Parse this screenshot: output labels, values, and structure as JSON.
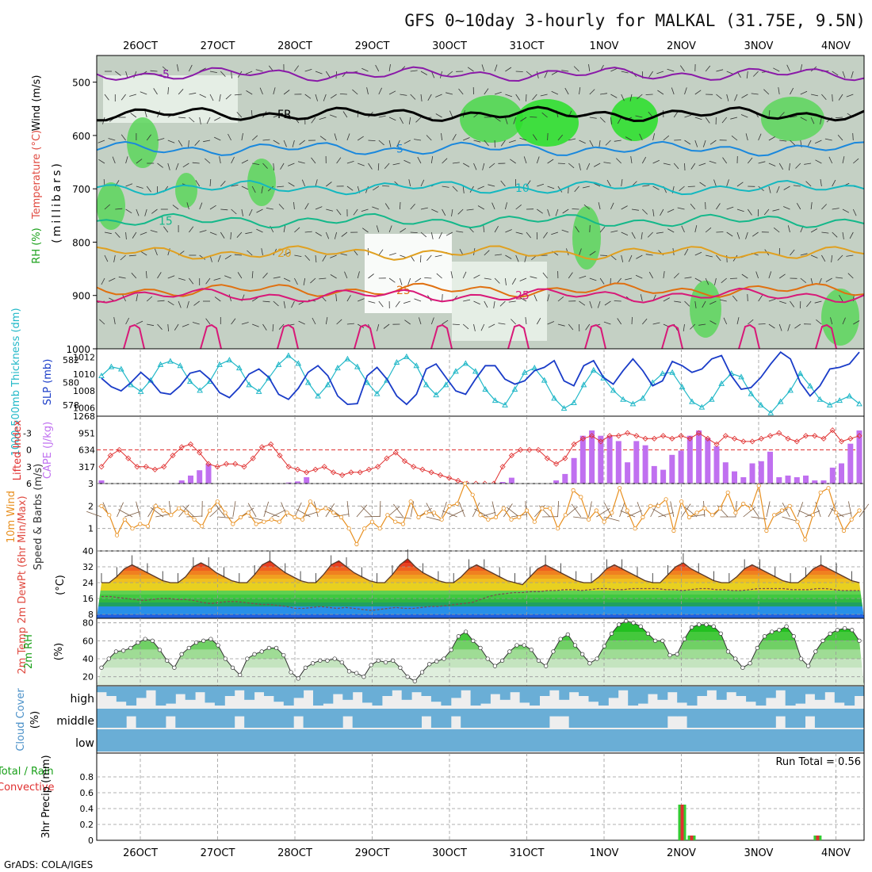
{
  "title": "GFS 0~10day 3-hourly for MALKAL (31.75E, 9.5N)",
  "credit": "GrADS: COLA/IGES",
  "dates": [
    "26OCT",
    "27OCT",
    "28OCT",
    "29OCT",
    "30OCT",
    "31OCT",
    "1NOV",
    "2NOV",
    "3NOV",
    "4NOV"
  ],
  "colors": {
    "sounding_temp": [
      "#8a1aa8",
      "#1a44c8",
      "#1a88dd",
      "#14b8c0",
      "#14b88a",
      "#e0a020",
      "#e07010",
      "#d81878"
    ],
    "thickness": "#22b8c8",
    "slp": "#1a3cc8",
    "lifted_index": "#e03030",
    "cape_bar": "#c070f0",
    "wind_speed": "#e89020",
    "wind_barb": "#7a5a40",
    "rh_green": "#33cc33",
    "cloud": "#6aaed6",
    "precip_total": "#33cc33",
    "precip_conv": "#e03030"
  },
  "chart_data": [
    {
      "id": "sounding",
      "type": "heatmap",
      "ylabel_wind": "Wind (m/s)",
      "ylabel_temp": "Temperature (°C)",
      "ylabel_rh": "RH (%)",
      "ylabel_units": "(millibars)",
      "y_ticks": [
        "500",
        "600",
        "700",
        "800",
        "900",
        "1000"
      ],
      "ylim": [
        1000,
        450
      ],
      "isotherms": [
        {
          "label": "-5",
          "p": 485
        },
        {
          "label": "FR",
          "p": 560
        },
        {
          "label": "5",
          "p": 625
        },
        {
          "label": "10",
          "p": 698
        },
        {
          "label": "15",
          "p": 760
        },
        {
          "label": "20",
          "p": 820
        },
        {
          "label": "25",
          "p": 890
        },
        {
          "label": "25",
          "p": 900
        }
      ],
      "contour_labels": [
        "50",
        "30",
        "10",
        "30",
        "50"
      ]
    },
    {
      "id": "thickness_slp",
      "type": "line",
      "ylabel_left": "1000-500mb Thickness (dm)",
      "ylabel_right": "SLP (mb)",
      "left_ticks": [
        "582",
        "580",
        "578"
      ],
      "right_ticks": [
        "1012",
        "1010",
        "1008",
        "1006"
      ],
      "ylim_left": [
        577,
        583
      ],
      "ylim_right": [
        1005,
        1013
      ],
      "series": [
        {
          "name": "1000-500mb Thickness (dm)",
          "values": [
            580.6,
            581.4,
            581.2,
            579.8,
            579.2,
            580.2,
            581.6,
            581.9,
            581.5,
            580.1,
            579.3,
            580.1,
            581.6,
            582.0,
            581.3,
            579.8,
            579.2,
            580.4,
            581.6,
            582.4,
            581.7,
            580.0,
            578.8,
            579.8,
            581.3,
            582.1,
            581.4,
            580.0,
            579.0,
            580.2,
            581.8,
            582.3,
            581.5,
            579.8,
            578.9,
            579.8,
            581.0,
            581.7,
            581.0,
            579.4,
            578.4,
            578.0,
            579.4,
            580.9,
            581.3,
            580.2,
            578.6,
            577.7,
            578.2,
            579.8,
            581.1,
            580.4,
            579.3,
            578.5,
            578.1,
            578.6,
            580.0,
            580.8,
            580.9,
            579.6,
            578.3,
            577.8,
            578.5,
            579.9,
            580.8,
            580.5,
            579.0,
            578.0,
            577.3,
            578.3,
            579.3,
            580.8,
            579.7,
            578.5,
            578.0,
            578.4,
            578.8,
            578.1
          ]
        },
        {
          "name": "SLP (mb)",
          "values": [
            1009.5,
            1008.5,
            1008.0,
            1009.0,
            1010.2,
            1009.2,
            1007.8,
            1007.6,
            1008.6,
            1010.1,
            1010.4,
            1009.4,
            1007.8,
            1007.2,
            1008.4,
            1010.0,
            1010.6,
            1009.6,
            1007.6,
            1007.0,
            1008.3,
            1010.2,
            1011.0,
            1009.8,
            1007.4,
            1006.4,
            1006.5,
            1009.8,
            1010.8,
            1009.4,
            1007.4,
            1006.4,
            1007.6,
            1010.6,
            1011.2,
            1009.6,
            1008.0,
            1007.6,
            1009.4,
            1011.0,
            1011.0,
            1009.4,
            1008.8,
            1009.2,
            1010.4,
            1010.8,
            1011.6,
            1009.2,
            1008.6,
            1011.0,
            1011.6,
            1009.6,
            1008.8,
            1010.4,
            1011.8,
            1010.4,
            1008.6,
            1009.2,
            1011.5,
            1011.0,
            1010.2,
            1010.6,
            1011.8,
            1012.2,
            1009.8,
            1008.2,
            1008.4,
            1009.6,
            1011.2,
            1012.6,
            1011.8,
            1009.0,
            1007.4,
            1008.6,
            1010.6,
            1010.8,
            1011.2,
            1012.6
          ]
        }
      ]
    },
    {
      "id": "cape_li",
      "type": "bar",
      "ylabel_left": "Lifted Index",
      "ylabel_right": "CAPE (J/kg)",
      "left_ticks": [
        "-3",
        "0",
        "3",
        "6"
      ],
      "right_ticks": [
        "1268",
        "951",
        "634",
        "317"
      ],
      "ylim_li": [
        -6,
        6
      ],
      "ylim_cape": [
        0,
        1268
      ],
      "series": [
        {
          "name": "CAPE (J/kg)",
          "values": [
            60,
            0,
            0,
            0,
            0,
            0,
            0,
            0,
            0,
            60,
            150,
            250,
            370,
            0,
            0,
            0,
            0,
            0,
            0,
            0,
            0,
            20,
            40,
            120,
            0,
            0,
            0,
            0,
            0,
            0,
            0,
            0,
            0,
            0,
            0,
            0,
            0,
            0,
            0,
            0,
            0,
            0,
            0,
            0,
            0,
            30,
            110,
            0,
            0,
            0,
            0,
            60,
            180,
            480,
            900,
            1000,
            900,
            900,
            800,
            400,
            800,
            720,
            330,
            260,
            540,
            620,
            900,
            1000,
            860,
            700,
            400,
            230,
            120,
            380,
            420,
            600,
            120,
            150,
            120,
            150,
            60,
            60,
            300,
            380,
            750,
            1000
          ]
        },
        {
          "name": "Lifted Index",
          "values": [
            3.0,
            1.0,
            0.0,
            1.5,
            3.0,
            3.0,
            3.5,
            3.0,
            1.0,
            -0.5,
            -1.0,
            0.5,
            2.5,
            3.0,
            2.5,
            2.5,
            3.0,
            1.5,
            -0.5,
            -1.0,
            1.0,
            3.0,
            3.5,
            4.0,
            3.5,
            3.0,
            4.0,
            4.5,
            4.0,
            4.0,
            3.5,
            3.0,
            1.5,
            0.5,
            2.0,
            3.0,
            3.5,
            4.0,
            4.5,
            5.0,
            5.5,
            6.0,
            6.0,
            6.0,
            6.0,
            3.0,
            1.0,
            0.0,
            0.0,
            0.0,
            1.5,
            2.5,
            1.5,
            -1.0,
            -2.0,
            -2.5,
            -1.5,
            -2.5,
            -2.5,
            -3.0,
            -2.5,
            -2.0,
            -2.0,
            -2.5,
            -2.0,
            -2.5,
            -2.0,
            -3.0,
            -2.0,
            -1.0,
            -2.5,
            -2.0,
            -1.5,
            -1.5,
            -2.0,
            -2.5,
            -3.0,
            -2.0,
            -1.5,
            -2.5,
            -2.5,
            -2.0,
            -3.5,
            -1.5,
            -2.0,
            -2.5
          ]
        }
      ]
    },
    {
      "id": "wind10m",
      "type": "line",
      "ylabel_left": "10m Wind",
      "ylabel_right": "Speed & Barbs (m/s)",
      "y_ticks": [
        "3",
        "2",
        "1"
      ],
      "ylim": [
        0,
        3
      ],
      "series": [
        {
          "name": "Speed",
          "values": [
            2.0,
            1.6,
            0.7,
            1.4,
            1.0,
            1.2,
            1.1,
            2.0,
            1.8,
            1.6,
            1.9,
            1.7,
            1.4,
            1.1,
            1.8,
            2.2,
            1.7,
            1.2,
            1.5,
            1.7,
            1.2,
            1.3,
            1.4,
            1.3,
            1.7,
            1.5,
            1.4,
            2.2,
            1.8,
            1.9,
            1.7,
            1.5,
            1.0,
            0.3,
            1.0,
            1.3,
            1.0,
            1.6,
            1.3,
            1.2,
            2.2,
            1.5,
            1.7,
            1.7,
            1.4,
            2.0,
            2.1,
            3.0,
            2.5,
            1.6,
            1.4,
            1.5,
            1.9,
            1.4,
            1.5,
            1.8,
            1.3,
            1.9,
            1.9,
            1.0,
            1.6,
            2.7,
            2.4,
            1.4,
            1.8,
            1.3,
            1.7,
            2.8,
            1.8,
            1.0,
            1.5,
            2.0,
            2.0,
            2.3,
            0.9,
            2.2,
            1.5,
            1.7,
            1.9,
            1.6,
            1.9,
            2.6,
            1.7,
            2.1,
            1.9,
            2.9,
            0.9,
            1.6,
            1.8,
            2.0,
            1.3,
            0.5,
            1.6,
            2.6,
            2.8,
            1.7,
            0.9,
            1.4,
            1.8
          ]
        }
      ]
    },
    {
      "id": "temperature",
      "type": "area",
      "ylabel_left": "2m Temp 2m DewPt (6hr Min/Max)",
      "ylabel_right": "(°C)",
      "y_ticks": [
        "40",
        "32",
        "24",
        "16",
        "8"
      ],
      "ylim": [
        6,
        40
      ],
      "series": [
        {
          "name": "2m Temp",
          "values": [
            24,
            24,
            27,
            31,
            33,
            31,
            29,
            27,
            25,
            24,
            24,
            27,
            32,
            34,
            32,
            29,
            27,
            25,
            24,
            24,
            28,
            33,
            35,
            32,
            29,
            27,
            25,
            24,
            24,
            28,
            33,
            35,
            32,
            29,
            27,
            25,
            24,
            24,
            28,
            33,
            36,
            32,
            29,
            27,
            25,
            24,
            24,
            27,
            31,
            33,
            31,
            29,
            27,
            25,
            24,
            23,
            27,
            31,
            33,
            31,
            29,
            27,
            25,
            24,
            24,
            27,
            31,
            33,
            31,
            29,
            27,
            25,
            24,
            24,
            28,
            32,
            34,
            31,
            29,
            27,
            25,
            24,
            24,
            27,
            31,
            33,
            31,
            29,
            27,
            25,
            24,
            24,
            27,
            31,
            33,
            31,
            29,
            27,
            25,
            24
          ]
        },
        {
          "name": "2m DewPt",
          "values": [
            17,
            17,
            16.5,
            16,
            15.5,
            15,
            15.5,
            16,
            16,
            15.5,
            15.5,
            15,
            14,
            13.5,
            14,
            14.5,
            14.5,
            14,
            13.5,
            13,
            13,
            12.5,
            12,
            11,
            11,
            11.5,
            12,
            11.5,
            11,
            11.5,
            11,
            10.5,
            10,
            10.5,
            11,
            11.5,
            11,
            11,
            11.5,
            12,
            12,
            12.5,
            13,
            13.5,
            14,
            15.5,
            17,
            18,
            18.5,
            19,
            19,
            19.5,
            19.5,
            20,
            20,
            20.5,
            20.5,
            20,
            20.5,
            21,
            21,
            20.5,
            20.5,
            21,
            21,
            21,
            21,
            20.5,
            20.5,
            20,
            20.5,
            21,
            21,
            20.5,
            20.5,
            20,
            20,
            20.5,
            21,
            21,
            21,
            21,
            20.5,
            20.5,
            20.5,
            21,
            21,
            20.5,
            20,
            20,
            20
          ]
        }
      ]
    },
    {
      "id": "rh2m",
      "type": "area",
      "ylabel_left": "2m RH",
      "ylabel_right": "(%)",
      "y_ticks": [
        "80",
        "60",
        "40",
        "20"
      ],
      "ylim": [
        10,
        85
      ],
      "series": [
        {
          "name": "2m RH",
          "values": [
            30,
            40,
            48,
            49,
            52,
            58,
            62,
            60,
            50,
            38,
            30,
            45,
            52,
            58,
            60,
            62,
            55,
            40,
            30,
            22,
            40,
            45,
            48,
            52,
            52,
            44,
            25,
            18,
            30,
            35,
            38,
            38,
            40,
            36,
            26,
            24,
            20,
            33,
            38,
            36,
            38,
            30,
            20,
            15,
            25,
            34,
            37,
            40,
            50,
            65,
            70,
            60,
            52,
            40,
            32,
            38,
            48,
            55,
            55,
            50,
            38,
            32,
            48,
            62,
            67,
            55,
            45,
            35,
            40,
            54,
            68,
            78,
            82,
            80,
            76,
            68,
            60,
            60,
            44,
            45,
            62,
            75,
            78,
            78,
            76,
            68,
            48,
            40,
            30,
            35,
            52,
            65,
            70,
            72,
            76,
            65,
            40,
            32,
            48,
            60,
            68,
            72,
            74,
            72,
            60
          ]
        }
      ]
    },
    {
      "id": "cloud",
      "type": "heatmap",
      "ylabel_left": "Cloud Cover",
      "ylabel_right": "(%)",
      "rows": [
        "high",
        "middle",
        "low"
      ]
    },
    {
      "id": "precip",
      "type": "bar",
      "ylabel_left": "Total / Rain",
      "ylabel_left2": "Convective",
      "ylabel_right": "3hr Precip (mm)",
      "annotation": "Run Total = 0.56",
      "y_ticks": [
        "0.8",
        "0.6",
        "0.4",
        "0.2",
        "0"
      ],
      "ylim": [
        0,
        1.0
      ],
      "bars": [
        {
          "x": 61.3,
          "total": 0.45,
          "conv": 0.45
        },
        {
          "x": 62.3,
          "total": 0.06,
          "conv": 0.06
        },
        {
          "x": 75.6,
          "total": 0.06,
          "conv": 0.06
        }
      ]
    }
  ]
}
